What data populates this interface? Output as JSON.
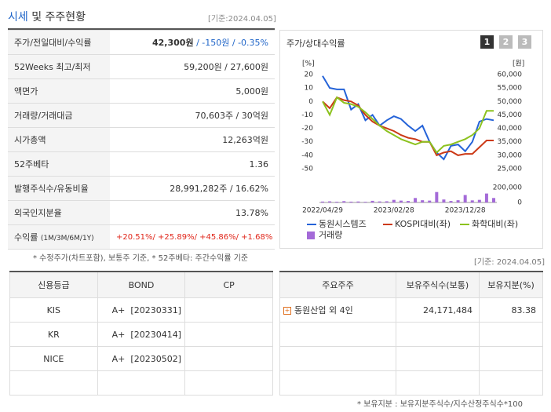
{
  "header": {
    "title_highlight": "시세",
    "title": "및 주주현황",
    "basis": "[기준:2024.04.05]"
  },
  "summary": {
    "rows": [
      {
        "label": "주가/전일대비/수익률",
        "price": "42,300원",
        "change": "/ -150원",
        "rate": "/ -0.35%"
      },
      {
        "label": "52Weeks 최고/최저",
        "value": "59,200원 / 27,600원"
      },
      {
        "label": "액면가",
        "value": "5,000원"
      },
      {
        "label": "거래량/거래대금",
        "value": "70,603주 / 30억원"
      },
      {
        "label": "시가총액",
        "value": "12,263억원"
      },
      {
        "label": "52주베타",
        "value": "1.36"
      },
      {
        "label": "발행주식수/유동비율",
        "value": "28,991,282주 / 16.62%"
      },
      {
        "label": "외국인지분율",
        "value": "13.78%"
      },
      {
        "label": "수익률",
        "label_note": "(1M/3M/6M/1Y)",
        "value": "+20.51%/ +25.89%/ +45.86%/ +1.68%"
      }
    ],
    "note": "* 수정주가(차트포함), 보통주 기준, * 52주베타: 주간수익률 기준"
  },
  "chart_tabs": [
    "1",
    "2",
    "3"
  ],
  "chart_data": {
    "type": "line",
    "title": "주가/상대수익률",
    "y_label": "[%]",
    "y2_label": "[원]",
    "categories": [
      "2022/04/29",
      null,
      null,
      null,
      null,
      null,
      null,
      null,
      null,
      null,
      "2023/02/28",
      null,
      null,
      null,
      null,
      null,
      null,
      null,
      null,
      null,
      "2023/12/28",
      null,
      null,
      null,
      null
    ],
    "ylim": [
      -50,
      20
    ],
    "yticks": [
      20,
      10,
      0,
      -10,
      -20,
      -30,
      -40,
      -50
    ],
    "y2lim": [
      25000,
      60000
    ],
    "y2ticks": [
      {
        "value": 60000,
        "label": "60,000"
      },
      {
        "value": 55000,
        "label": "55,000"
      },
      {
        "value": 50000,
        "label": "50,000"
      },
      {
        "value": 45000,
        "label": "45,000"
      },
      {
        "value": 40000,
        "label": "40,000"
      },
      {
        "value": 35000,
        "label": "35,000"
      },
      {
        "value": 30000,
        "label": "30,000"
      },
      {
        "value": 25000,
        "label": "25,000"
      }
    ],
    "y3lim": [
      0,
      200000
    ],
    "y3ticks": [
      {
        "value": 200000,
        "label": "200,000"
      },
      0
    ],
    "series": [
      {
        "name": "동원시스템즈",
        "color": "#2563d8",
        "axis": "y2",
        "values": [
          59500,
          55000,
          54500,
          54500,
          47000,
          49000,
          43000,
          45000,
          41000,
          43000,
          44500,
          43500,
          41000,
          39000,
          41000,
          35000,
          31000,
          28500,
          33500,
          34000,
          31500,
          35000,
          42500,
          43500,
          43000
        ]
      },
      {
        "name": "KOSPI대비(좌)",
        "color": "#cc3a17",
        "values": [
          0,
          -5,
          3,
          1,
          0,
          -3,
          -10,
          -15,
          -18,
          -20,
          -22,
          -25,
          -27,
          -28,
          -30,
          -30,
          -40,
          -38,
          -37,
          -40,
          -39,
          -39,
          -34,
          -29,
          -29
        ]
      },
      {
        "name": "화학대비(좌)",
        "color": "#8cc21e",
        "values": [
          0,
          -10,
          3,
          -1,
          -2,
          -4,
          -8,
          -13,
          -18,
          -22,
          -25,
          -28,
          -30,
          -32,
          -30,
          -30,
          -38,
          -33,
          -32,
          -30,
          -28,
          -25,
          -20,
          -7,
          -7
        ]
      },
      {
        "name": "거래량",
        "color": "#a46ad8",
        "type": "bar",
        "axis": "y3",
        "values": [
          12000,
          15000,
          10000,
          18000,
          11000,
          13000,
          9000,
          22000,
          14000,
          16000,
          35000,
          25000,
          20000,
          60000,
          30000,
          25000,
          140000,
          40000,
          20000,
          30000,
          100000,
          28000,
          35000,
          120000,
          60000
        ]
      }
    ]
  },
  "rating": {
    "basis": "[기준: 2024.04.05]",
    "headers": [
      "신용등급",
      "BOND",
      "CP"
    ],
    "rows": [
      {
        "agency": "KIS",
        "grade": "A+",
        "date": "[20230331]"
      },
      {
        "agency": "KR",
        "grade": "A+",
        "date": "[20230414]"
      },
      {
        "agency": "NICE",
        "grade": "A+",
        "date": "[20230502]"
      }
    ]
  },
  "holders": {
    "headers": [
      "주요주주",
      "보유주식수(보통)",
      "보유지분(%)"
    ],
    "rows": [
      {
        "name": "동원산업 외 4인",
        "shares": "24,171,484",
        "ratio": "83.38"
      }
    ],
    "note": "* 보유지분 : 보유지분주식수/지수산정주식수*100"
  }
}
